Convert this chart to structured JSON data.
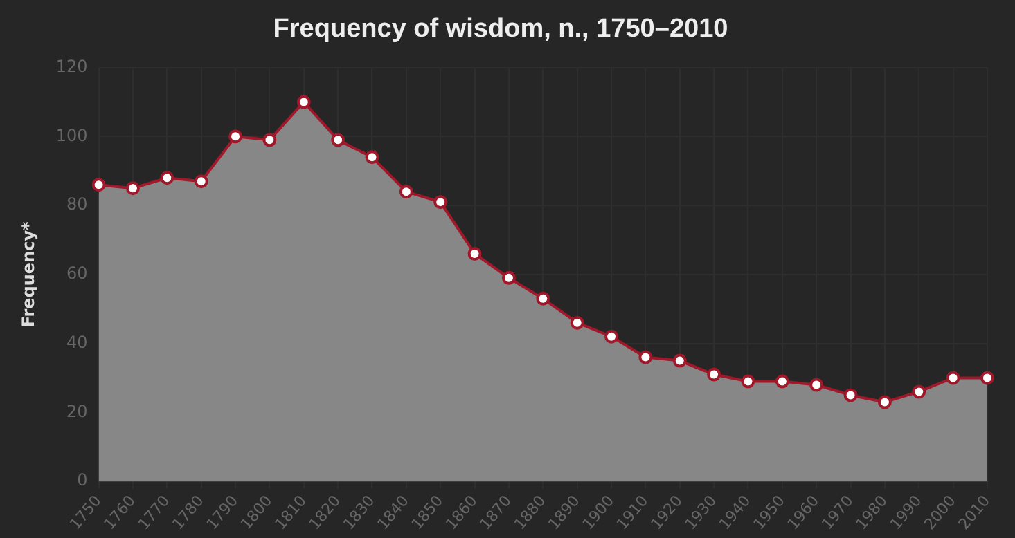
{
  "chart_data": {
    "type": "area",
    "title": "Frequency of wisdom, n., 1750–2010",
    "ylabel": "Frequency*",
    "categories": [
      "1750",
      "1760",
      "1770",
      "1780",
      "1790",
      "1800",
      "1810",
      "1820",
      "1830",
      "1840",
      "1850",
      "1860",
      "1870",
      "1880",
      "1890",
      "1900",
      "1910",
      "1920",
      "1930",
      "1940",
      "1950",
      "1960",
      "1970",
      "1980",
      "1990",
      "2000",
      "2010"
    ],
    "series": [
      {
        "color": "#a0182a",
        "values": [
          86,
          85,
          88,
          87,
          100,
          99,
          110,
          99,
          94,
          84,
          81,
          66,
          59,
          53,
          46,
          42,
          36,
          35,
          31,
          29,
          29,
          28,
          25,
          23,
          26,
          30,
          30
        ]
      }
    ],
    "ylim": [
      0,
      120
    ],
    "yticks": [
      0,
      20,
      40,
      60,
      80,
      100,
      120
    ],
    "grid": true,
    "legend": false,
    "marker": "circle",
    "line_style": "solid"
  }
}
